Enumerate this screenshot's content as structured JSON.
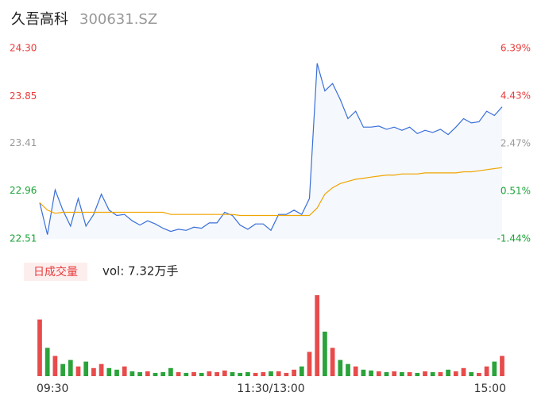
{
  "header": {
    "name": "久吾高科",
    "code": "300631.SZ"
  },
  "chart_data": {
    "type": "line",
    "x": [
      0,
      4,
      8,
      12,
      16,
      20,
      24,
      28,
      32,
      36,
      40,
      44,
      48,
      52,
      56,
      60,
      64,
      68,
      72,
      76,
      80,
      84,
      88,
      92,
      96,
      100,
      104,
      108,
      112,
      116,
      120,
      124,
      128,
      132,
      136,
      140,
      144,
      148,
      152,
      156,
      160,
      164,
      168,
      172,
      176,
      180,
      184,
      188,
      192,
      196,
      200,
      204,
      208,
      212,
      216,
      220,
      224,
      228,
      232,
      236,
      240
    ],
    "xlim": [
      0,
      240
    ],
    "xticks": [
      {
        "value": 0,
        "label": "09:30"
      },
      {
        "value": 120,
        "label": "11:30/13:00"
      },
      {
        "value": 240,
        "label": "15:00"
      }
    ],
    "ylim": [
      22.51,
      24.3
    ],
    "yticks": [
      {
        "value": 24.3,
        "label": "24.30"
      },
      {
        "value": 23.85,
        "label": "23.85"
      },
      {
        "value": 23.41,
        "label": "23.41"
      },
      {
        "value": 22.96,
        "label": "22.96"
      },
      {
        "value": 22.51,
        "label": "22.51"
      }
    ],
    "ytick_colors": [
      "#e83a3a",
      "#e83a3a",
      "#999999",
      "#1aa336",
      "#1aa336"
    ],
    "y2lim": [
      -1.44,
      6.39
    ],
    "y2ticks": [
      {
        "value": 6.39,
        "label": "6.39%"
      },
      {
        "value": 4.43,
        "label": "4.43%"
      },
      {
        "value": 2.47,
        "label": "2.47%"
      },
      {
        "value": 0.51,
        "label": "0.51%"
      },
      {
        "value": -1.44,
        "label": "-1.44%"
      }
    ],
    "series": [
      {
        "color": "#3a6fd8",
        "values": [
          22.85,
          22.55,
          22.97,
          22.78,
          22.63,
          22.89,
          22.63,
          22.74,
          22.93,
          22.78,
          22.73,
          22.74,
          22.68,
          22.64,
          22.68,
          22.65,
          22.61,
          22.58,
          22.6,
          22.59,
          22.62,
          22.61,
          22.66,
          22.66,
          22.76,
          22.73,
          22.64,
          22.6,
          22.65,
          22.65,
          22.59,
          22.74,
          22.74,
          22.78,
          22.74,
          22.89,
          24.16,
          23.9,
          23.97,
          23.82,
          23.64,
          23.71,
          23.56,
          23.56,
          23.57,
          23.54,
          23.56,
          23.53,
          23.56,
          23.5,
          23.53,
          23.51,
          23.54,
          23.49,
          23.56,
          23.64,
          23.6,
          23.61,
          23.71,
          23.67,
          23.75
        ]
      },
      {
        "color": "#f0a500",
        "values": [
          22.85,
          22.78,
          22.75,
          22.76,
          22.76,
          22.76,
          22.76,
          22.76,
          22.76,
          22.76,
          22.76,
          22.76,
          22.76,
          22.76,
          22.76,
          22.76,
          22.76,
          22.74,
          22.74,
          22.74,
          22.74,
          22.74,
          22.74,
          22.74,
          22.74,
          22.74,
          22.73,
          22.73,
          22.73,
          22.73,
          22.73,
          22.73,
          22.73,
          22.73,
          22.73,
          22.73,
          22.8,
          22.93,
          22.99,
          23.03,
          23.05,
          23.07,
          23.08,
          23.09,
          23.1,
          23.11,
          23.11,
          23.12,
          23.12,
          23.12,
          23.13,
          23.13,
          23.13,
          23.13,
          23.13,
          23.14,
          23.14,
          23.15,
          23.16,
          23.17,
          23.18
        ]
      }
    ]
  },
  "volume": {
    "button": "日成交量",
    "label": "vol: 7.32万手",
    "values": [
      1400,
      700,
      500,
      300,
      400,
      240,
      360,
      200,
      300,
      200,
      160,
      240,
      120,
      100,
      120,
      80,
      100,
      200,
      100,
      80,
      100,
      80,
      120,
      100,
      140,
      100,
      80,
      100,
      80,
      100,
      120,
      120,
      80,
      160,
      240,
      600,
      2000,
      1100,
      700,
      400,
      300,
      240,
      160,
      140,
      120,
      100,
      120,
      100,
      100,
      80,
      120,
      100,
      100,
      160,
      120,
      200,
      100,
      80,
      240,
      360,
      500
    ],
    "colors": [
      "#e84b4b",
      "#2aa33a",
      "#e84b4b",
      "#2aa33a",
      "#2aa33a",
      "#e84b4b",
      "#2aa33a",
      "#e84b4b",
      "#e84b4b",
      "#2aa33a",
      "#2aa33a",
      "#e84b4b",
      "#2aa33a",
      "#2aa33a",
      "#e84b4b",
      "#2aa33a",
      "#2aa33a",
      "#2aa33a",
      "#e84b4b",
      "#2aa33a",
      "#e84b4b",
      "#2aa33a",
      "#e84b4b",
      "#e84b4b",
      "#e84b4b",
      "#2aa33a",
      "#2aa33a",
      "#2aa33a",
      "#e84b4b",
      "#e84b4b",
      "#2aa33a",
      "#e84b4b",
      "#e84b4b",
      "#e84b4b",
      "#2aa33a",
      "#e84b4b",
      "#e84b4b",
      "#2aa33a",
      "#e84b4b",
      "#2aa33a",
      "#2aa33a",
      "#e84b4b",
      "#2aa33a",
      "#2aa33a",
      "#e84b4b",
      "#2aa33a",
      "#e84b4b",
      "#2aa33a",
      "#e84b4b",
      "#2aa33a",
      "#e84b4b",
      "#2aa33a",
      "#e84b4b",
      "#2aa33a",
      "#e84b4b",
      "#e84b4b",
      "#2aa33a",
      "#e84b4b",
      "#e84b4b",
      "#2aa33a",
      "#e84b4b"
    ]
  }
}
